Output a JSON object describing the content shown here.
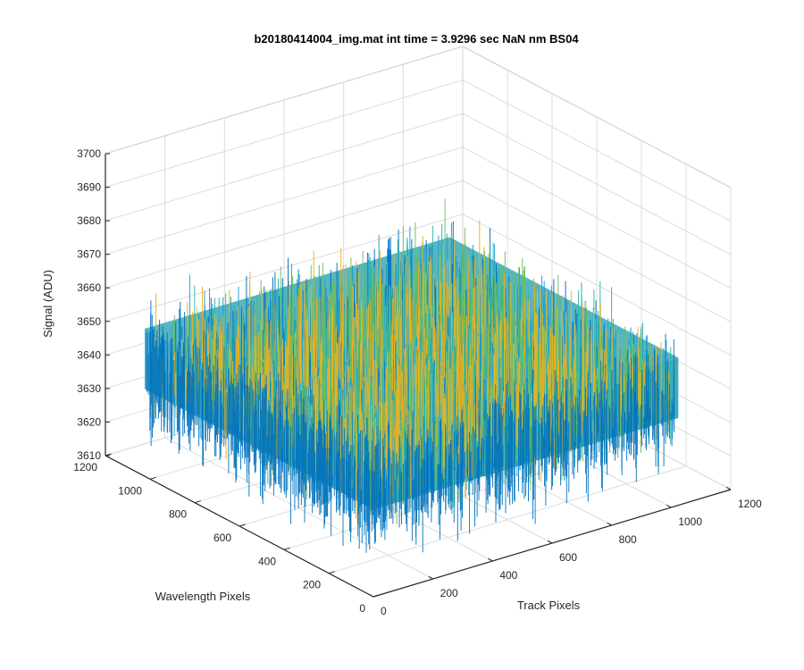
{
  "chart_data": {
    "type": "surface3d",
    "title": "b20180414004_img.mat int time = 3.9296 sec  NaN nm BS04",
    "xlabel": "Track Pixels",
    "ylabel": "Wavelength Pixels",
    "zlabel": "Signal (ADU)",
    "xlim": [
      0,
      1200
    ],
    "ylim": [
      0,
      1200
    ],
    "zlim": [
      3610,
      3700
    ],
    "xticks": [
      "0",
      "200",
      "400",
      "600",
      "800",
      "1000",
      "1200"
    ],
    "yticks": [
      "0",
      "200",
      "400",
      "600",
      "800",
      "1000",
      "1200"
    ],
    "zticks": [
      "3610",
      "3620",
      "3630",
      "3640",
      "3650",
      "3660",
      "3670",
      "3680",
      "3690",
      "3700"
    ],
    "data_extent": {
      "x": [
        0,
        1024
      ],
      "y": [
        0,
        1024
      ],
      "z_center": 3645,
      "z_min": 3610,
      "z_max": 3690
    },
    "grid": true,
    "colors": [
      "#0072bd",
      "#1a9fd3",
      "#2fb5a8",
      "#6fbf5e",
      "#edb120"
    ]
  }
}
